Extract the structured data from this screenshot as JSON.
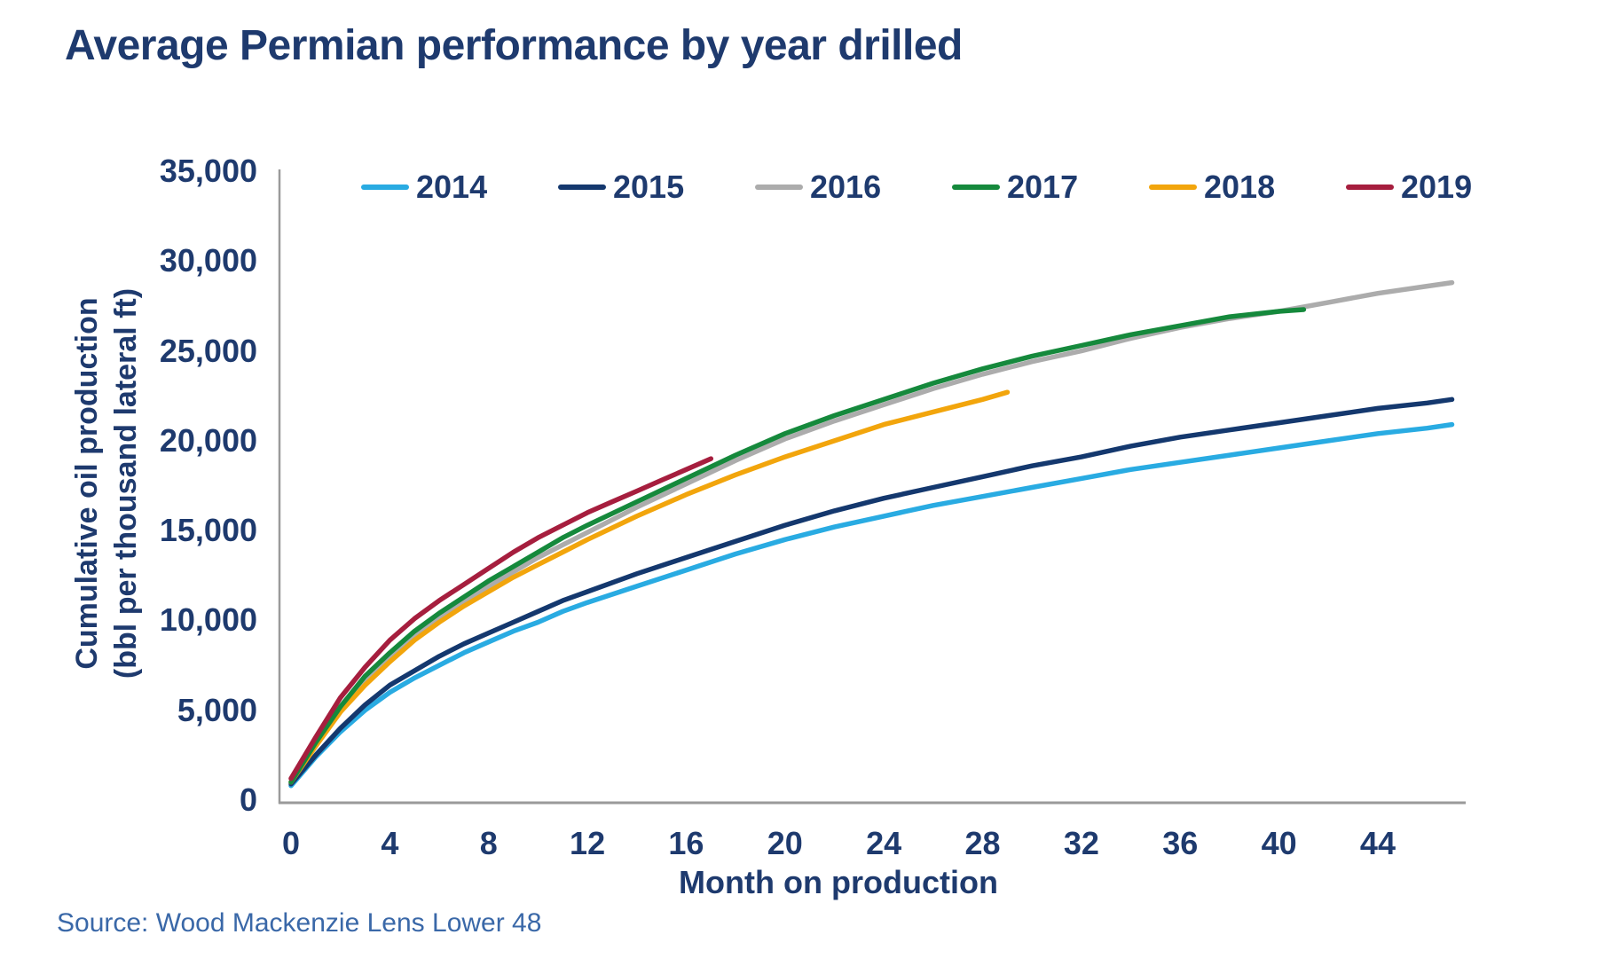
{
  "page": {
    "source": "Source: Wood Mackenzie Lens Lower 48"
  },
  "colors": {
    "title_text": "#1E3A6E",
    "tick_text": "#1E3A6E",
    "source_text": "#3A68A8",
    "axis_line": "#9A9A9A"
  },
  "chart_data": {
    "type": "line",
    "title": "Average Permian performance by year drilled",
    "xlabel": "Month on production",
    "ylabel": "Cumulative oil production (bbl per thousand lateral ft)",
    "ylabel_line1": "Cumulative oil production",
    "ylabel_line2": "(bbl per thousand lateral ft)",
    "xlim": [
      0,
      47.5
    ],
    "ylim": [
      0,
      35000
    ],
    "x_ticks": [
      0,
      4,
      8,
      12,
      16,
      20,
      24,
      28,
      32,
      36,
      40,
      44
    ],
    "y_ticks": [
      0,
      5000,
      10000,
      15000,
      20000,
      25000,
      30000,
      35000
    ],
    "grid": false,
    "legend_position": "top-inside",
    "series": [
      {
        "name": "2014",
        "color": "#29ABE2",
        "points": [
          [
            0,
            800
          ],
          [
            1,
            2400
          ],
          [
            2,
            3800
          ],
          [
            3,
            5000
          ],
          [
            4,
            6000
          ],
          [
            5,
            6800
          ],
          [
            6,
            7500
          ],
          [
            7,
            8200
          ],
          [
            8,
            8800
          ],
          [
            9,
            9400
          ],
          [
            10,
            9900
          ],
          [
            11,
            10500
          ],
          [
            12,
            11000
          ],
          [
            14,
            11900
          ],
          [
            16,
            12800
          ],
          [
            18,
            13700
          ],
          [
            20,
            14500
          ],
          [
            22,
            15200
          ],
          [
            24,
            15800
          ],
          [
            26,
            16400
          ],
          [
            28,
            16900
          ],
          [
            30,
            17400
          ],
          [
            32,
            17900
          ],
          [
            34,
            18400
          ],
          [
            36,
            18800
          ],
          [
            38,
            19200
          ],
          [
            40,
            19600
          ],
          [
            42,
            20000
          ],
          [
            44,
            20400
          ],
          [
            46,
            20700
          ],
          [
            47,
            20900
          ]
        ]
      },
      {
        "name": "2015",
        "color": "#14386E",
        "points": [
          [
            0,
            900
          ],
          [
            1,
            2500
          ],
          [
            2,
            4000
          ],
          [
            3,
            5300
          ],
          [
            4,
            6400
          ],
          [
            5,
            7200
          ],
          [
            6,
            8000
          ],
          [
            7,
            8700
          ],
          [
            8,
            9300
          ],
          [
            9,
            9900
          ],
          [
            10,
            10500
          ],
          [
            11,
            11100
          ],
          [
            12,
            11600
          ],
          [
            14,
            12600
          ],
          [
            16,
            13500
          ],
          [
            18,
            14400
          ],
          [
            20,
            15300
          ],
          [
            22,
            16100
          ],
          [
            24,
            16800
          ],
          [
            26,
            17400
          ],
          [
            28,
            18000
          ],
          [
            30,
            18600
          ],
          [
            32,
            19100
          ],
          [
            34,
            19700
          ],
          [
            36,
            20200
          ],
          [
            38,
            20600
          ],
          [
            40,
            21000
          ],
          [
            42,
            21400
          ],
          [
            44,
            21800
          ],
          [
            46,
            22100
          ],
          [
            47,
            22300
          ]
        ]
      },
      {
        "name": "2016",
        "color": "#ACACAC",
        "points": [
          [
            0,
            1000
          ],
          [
            1,
            3100
          ],
          [
            2,
            5000
          ],
          [
            3,
            6600
          ],
          [
            4,
            7900
          ],
          [
            5,
            9100
          ],
          [
            6,
            10100
          ],
          [
            7,
            11000
          ],
          [
            8,
            11900
          ],
          [
            9,
            12700
          ],
          [
            10,
            13500
          ],
          [
            11,
            14200
          ],
          [
            12,
            14900
          ],
          [
            14,
            16300
          ],
          [
            16,
            17600
          ],
          [
            18,
            18900
          ],
          [
            20,
            20100
          ],
          [
            22,
            21100
          ],
          [
            24,
            22000
          ],
          [
            26,
            22900
          ],
          [
            28,
            23700
          ],
          [
            30,
            24400
          ],
          [
            32,
            25000
          ],
          [
            34,
            25700
          ],
          [
            36,
            26300
          ],
          [
            38,
            26800
          ],
          [
            40,
            27200
          ],
          [
            42,
            27700
          ],
          [
            44,
            28200
          ],
          [
            46,
            28600
          ],
          [
            47,
            28800
          ]
        ]
      },
      {
        "name": "2017",
        "color": "#15893C",
        "points": [
          [
            0,
            1000
          ],
          [
            1,
            3200
          ],
          [
            2,
            5200
          ],
          [
            3,
            6900
          ],
          [
            4,
            8200
          ],
          [
            5,
            9400
          ],
          [
            6,
            10400
          ],
          [
            7,
            11300
          ],
          [
            8,
            12200
          ],
          [
            9,
            13000
          ],
          [
            10,
            13800
          ],
          [
            11,
            14600
          ],
          [
            12,
            15300
          ],
          [
            14,
            16600
          ],
          [
            16,
            17900
          ],
          [
            18,
            19200
          ],
          [
            20,
            20400
          ],
          [
            22,
            21400
          ],
          [
            24,
            22300
          ],
          [
            26,
            23200
          ],
          [
            28,
            24000
          ],
          [
            30,
            24700
          ],
          [
            32,
            25300
          ],
          [
            34,
            25900
          ],
          [
            36,
            26400
          ],
          [
            38,
            26900
          ],
          [
            40,
            27200
          ],
          [
            41,
            27300
          ]
        ]
      },
      {
        "name": "2018",
        "color": "#F2A50C",
        "points": [
          [
            0,
            1000
          ],
          [
            1,
            3000
          ],
          [
            2,
            4900
          ],
          [
            3,
            6400
          ],
          [
            4,
            7700
          ],
          [
            5,
            8900
          ],
          [
            6,
            9900
          ],
          [
            7,
            10800
          ],
          [
            8,
            11600
          ],
          [
            9,
            12400
          ],
          [
            10,
            13100
          ],
          [
            11,
            13800
          ],
          [
            12,
            14500
          ],
          [
            14,
            15800
          ],
          [
            16,
            17000
          ],
          [
            18,
            18100
          ],
          [
            20,
            19100
          ],
          [
            22,
            20000
          ],
          [
            24,
            20900
          ],
          [
            26,
            21600
          ],
          [
            28,
            22300
          ],
          [
            29,
            22700
          ]
        ]
      },
      {
        "name": "2019",
        "color": "#A61E3E",
        "points": [
          [
            0,
            1200
          ],
          [
            1,
            3500
          ],
          [
            2,
            5700
          ],
          [
            3,
            7400
          ],
          [
            4,
            8900
          ],
          [
            5,
            10100
          ],
          [
            6,
            11100
          ],
          [
            7,
            12000
          ],
          [
            8,
            12900
          ],
          [
            9,
            13800
          ],
          [
            10,
            14600
          ],
          [
            11,
            15300
          ],
          [
            12,
            16000
          ],
          [
            13,
            16600
          ],
          [
            14,
            17200
          ],
          [
            15,
            17800
          ],
          [
            16,
            18400
          ],
          [
            17,
            19000
          ]
        ]
      }
    ]
  }
}
